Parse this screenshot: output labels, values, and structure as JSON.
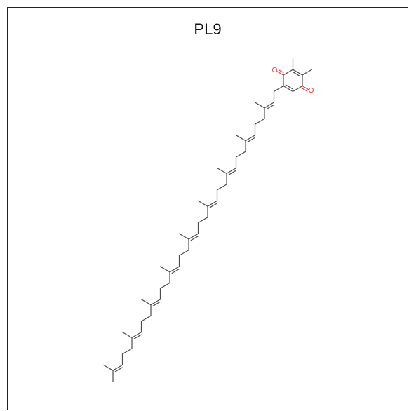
{
  "title": "PL9",
  "atoms": [
    {
      "label": "O"
    },
    {
      "label": "O"
    }
  ]
}
